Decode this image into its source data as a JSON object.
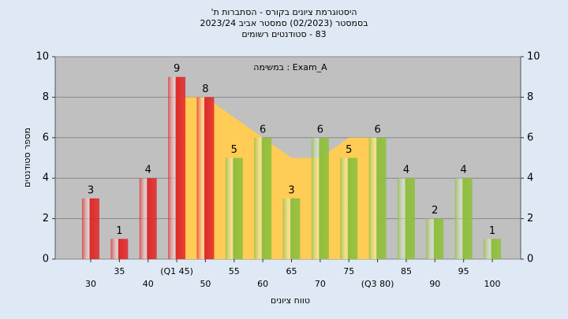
{
  "chart_data": {
    "type": "bar",
    "title": "היסטוגרמת ציונים בקורס - הסתברות ת'",
    "subtitle": "בסמסטר  (02/2023)  סמסטר אביב 2023/24",
    "subtitle2": "83 - סטודנטים רשומים",
    "annotation": "במשימה : Exam_A",
    "x_label": "טווח ציונים",
    "y_label": "מספר סטודנטים",
    "categories": [
      "30",
      "35",
      "40",
      "(Q1 45)",
      "50",
      "55",
      "60",
      "65",
      "70",
      "75",
      "(Q3 80)",
      "85",
      "90",
      "95",
      "100"
    ],
    "values": [
      3,
      1,
      4,
      9,
      8,
      5,
      6,
      3,
      6,
      5,
      6,
      4,
      2,
      4,
      1
    ],
    "colors": [
      "#e02a2a",
      "#e02a2a",
      "#e02a2a",
      "#e02a2a",
      "#e02a2a",
      "#8fbf3c",
      "#8fbf3c",
      "#8fbf3c",
      "#8fbf3c",
      "#8fbf3c",
      "#8fbf3c",
      "#8fbf3c",
      "#8fbf3c",
      "#8fbf3c",
      "#8fbf3c"
    ],
    "area": {
      "color": "#ffcc55",
      "values": [
        null,
        null,
        null,
        8,
        8,
        7,
        6,
        5,
        5,
        6,
        6,
        null,
        null,
        null,
        null
      ]
    },
    "ylim": [
      0,
      10
    ],
    "yticks": [
      0,
      2,
      4,
      6,
      8,
      10
    ],
    "y2lim": [
      0,
      10
    ],
    "y2ticks": [
      0,
      2,
      4,
      6,
      8,
      10
    ],
    "grid": true
  }
}
